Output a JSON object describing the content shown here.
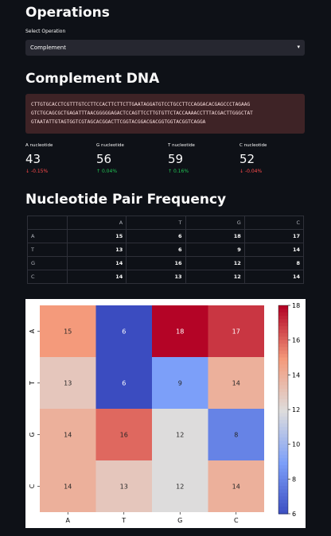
{
  "operations": {
    "title": "Operations",
    "select_label": "Select Operation",
    "selected_value": "Complement"
  },
  "complement": {
    "title": "Complement DNA",
    "sequence_lines": [
      "CTTGTGCACCTCGTTTGTCCTTCCACTTCTTCTTGAATAGGATGTCCTGCCTTCCAGGACACGAGCCCTAGAAG",
      "GTCTGCAGCGCTGAGATTTAACGGGGGAGACTCCAGTTCCTTGTGTTCTACCAAAACCTTTACGACTTGGGCTAT",
      "GTAATATTGTAGTGGTCGTAGCACGGACTTCGGTACGGACGACGGTGGTACGGTCAGGA"
    ]
  },
  "metrics": [
    {
      "label": "A nucleotide",
      "value": "43",
      "delta": "-0.15%",
      "direction": "down"
    },
    {
      "label": "G nucleotide",
      "value": "56",
      "delta": "0.04%",
      "direction": "up"
    },
    {
      "label": "T nucleotide",
      "value": "59",
      "delta": "0.16%",
      "direction": "up"
    },
    {
      "label": "C nucleotide",
      "value": "52",
      "delta": "-0.04%",
      "direction": "down"
    }
  ],
  "frequency": {
    "title": "Nucleotide Pair Frequency",
    "columns": [
      "",
      "A",
      "T",
      "G",
      "C"
    ],
    "rows": [
      {
        "label": "A",
        "values": [
          "15",
          "6",
          "18",
          "17"
        ]
      },
      {
        "label": "T",
        "values": [
          "13",
          "6",
          "9",
          "14"
        ]
      },
      {
        "label": "G",
        "values": [
          "14",
          "16",
          "12",
          "8"
        ]
      },
      {
        "label": "C",
        "values": [
          "14",
          "13",
          "12",
          "14"
        ]
      }
    ]
  },
  "chart_data": {
    "type": "heatmap",
    "x_labels": [
      "A",
      "T",
      "G",
      "C"
    ],
    "y_labels": [
      "A",
      "T",
      "G",
      "C"
    ],
    "values": [
      [
        15,
        6,
        18,
        17
      ],
      [
        13,
        6,
        9,
        14
      ],
      [
        14,
        16,
        12,
        8
      ],
      [
        14,
        13,
        12,
        14
      ]
    ],
    "colormap": "coolwarm",
    "vmin": 6,
    "vmax": 18,
    "colorbar_ticks": [
      6,
      8,
      10,
      12,
      14,
      16,
      18
    ]
  },
  "colors": {
    "background": "#0e1117",
    "negative": "#ff4b4b",
    "positive": "#21c354",
    "dna_box": "#3e2326"
  }
}
